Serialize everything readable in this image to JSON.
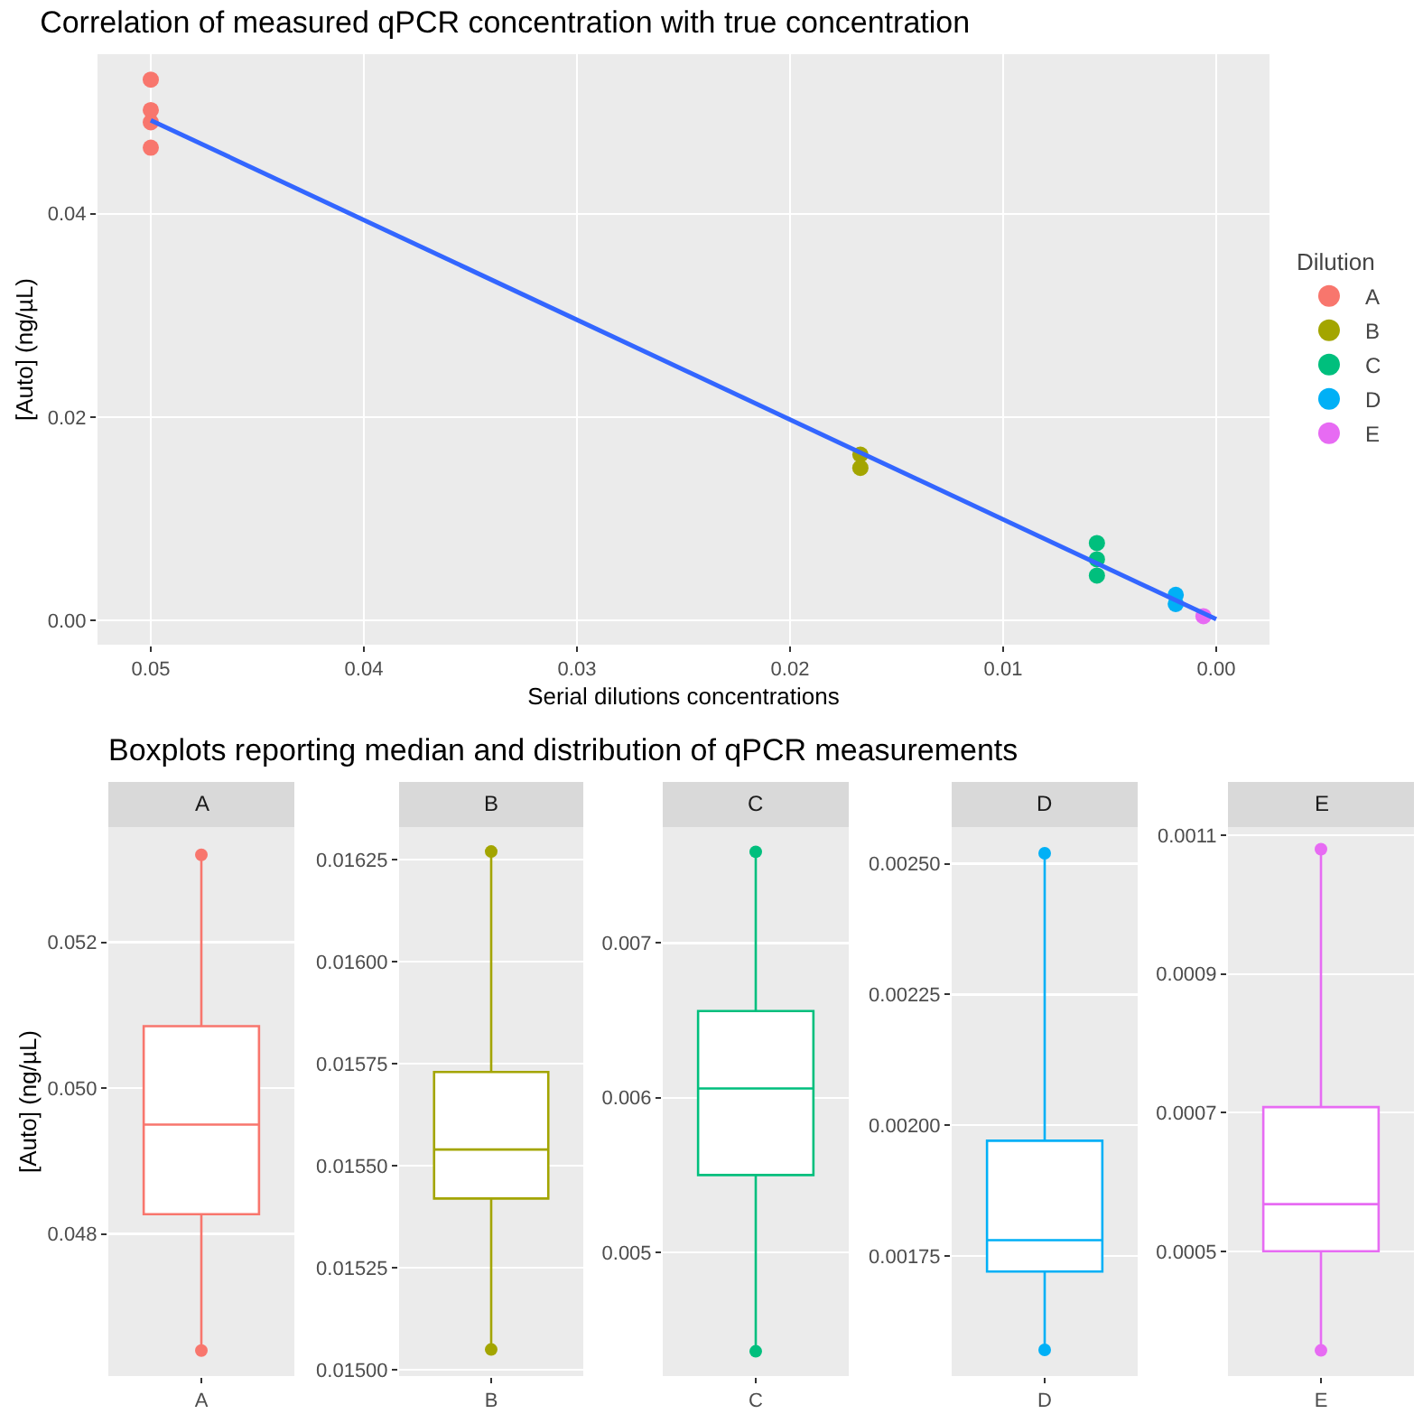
{
  "chart_data": [
    {
      "type": "scatter",
      "title": "Correlation of measured qPCR concentration with true concentration",
      "xlabel": "Serial dilutions concentrations",
      "ylabel": "[Auto] (ng/µL)",
      "legend_title": "Dilution",
      "legend": "right",
      "grid": true,
      "marker": "circle",
      "xlim": [
        0.0525,
        -0.0025
      ],
      "xticks": [
        0.05,
        0.04,
        0.03,
        0.02,
        0.01,
        {
          "value": 0,
          "label": "0.00"
        }
      ],
      "ylim": [
        -0.0024,
        0.0557
      ],
      "yticks": [
        {
          "value": 0,
          "label": "0.00"
        },
        0.02,
        0.04
      ],
      "series": [
        {
          "name": "A",
          "color": "#f8766d",
          "x": [
            0.05,
            0.05,
            0.05,
            0.05
          ],
          "values": [
            0.0532,
            0.0502,
            0.049,
            0.0465
          ]
        },
        {
          "name": "B",
          "color": "#a3a500",
          "x": [
            0.0167,
            0.0167
          ],
          "values": [
            0.0163,
            0.015
          ]
        },
        {
          "name": "C",
          "color": "#00bf7d",
          "x": [
            0.0056,
            0.0056,
            0.0056
          ],
          "values": [
            0.0076,
            0.006,
            0.0044
          ]
        },
        {
          "name": "D",
          "color": "#00b0f6",
          "x": [
            0.0019,
            0.0019
          ],
          "values": [
            0.0025,
            0.0016
          ]
        },
        {
          "name": "E",
          "color": "#e76bf3",
          "x": [
            0.0006
          ],
          "values": [
            0.0004
          ]
        },
        {
          "type": "line",
          "marker": "none",
          "color": "#3366ff",
          "x": [
            0.05,
            0
          ],
          "values": [
            0.0492,
            0.0001
          ]
        }
      ]
    },
    {
      "type": "box",
      "title": "A",
      "annotations": [
        "Boxplots reporting median and distribution of qPCR measurements"
      ],
      "ylabel": "[Auto] (ng/µL)",
      "grid": "y",
      "categories": [
        "A"
      ],
      "color": "#f8766d",
      "ylim": [
        0.04605,
        0.05358
      ],
      "yticks": [
        0.048,
        {
          "value": 0.05,
          "label": "0.050"
        },
        0.052
      ],
      "boxes": [
        {
          "low": 0.0464,
          "q1": 0.04827,
          "median": 0.0495,
          "q3": 0.05085,
          "high": 0.0532
        }
      ],
      "series": [
        {
          "type": "scatter",
          "color": "#f8766d",
          "x": [
            "A",
            "A"
          ],
          "values": [
            0.0532,
            0.0464
          ]
        }
      ]
    },
    {
      "type": "box",
      "title": "B",
      "grid": "y",
      "categories": [
        "B"
      ],
      "color": "#a3a500",
      "ylim": [
        0.014985,
        0.01633
      ],
      "yticks": [
        {
          "value": 0.015,
          "label": "0.01500"
        },
        {
          "value": 0.01525,
          "label": "0.01525"
        },
        {
          "value": 0.0155,
          "label": "0.01550"
        },
        {
          "value": 0.01575,
          "label": "0.01575"
        },
        {
          "value": 0.016,
          "label": "0.01600"
        },
        {
          "value": 0.01625,
          "label": "0.01625"
        }
      ],
      "boxes": [
        {
          "low": 0.01505,
          "q1": 0.01542,
          "median": 0.01554,
          "q3": 0.01573,
          "high": 0.01627
        }
      ],
      "series": [
        {
          "type": "scatter",
          "color": "#a3a500",
          "x": [
            "B",
            "B"
          ],
          "values": [
            0.01627,
            0.01505
          ]
        }
      ]
    },
    {
      "type": "box",
      "title": "C",
      "grid": "y",
      "categories": [
        "C"
      ],
      "color": "#00bf7d",
      "ylim": [
        0.0042,
        0.00775
      ],
      "yticks": [
        0.005,
        0.006,
        0.007
      ],
      "boxes": [
        {
          "low": 0.00436,
          "q1": 0.0055,
          "median": 0.00606,
          "q3": 0.00656,
          "high": 0.00759
        }
      ],
      "series": [
        {
          "type": "scatter",
          "color": "#00bf7d",
          "x": [
            "C",
            "C"
          ],
          "values": [
            0.00759,
            0.00436
          ]
        }
      ]
    },
    {
      "type": "box",
      "title": "D",
      "grid": "y",
      "categories": [
        "D"
      ],
      "color": "#00b0f6",
      "ylim": [
        0.00152,
        0.00257
      ],
      "yticks": [
        {
          "value": 0.00175,
          "label": "0.00175"
        },
        {
          "value": 0.002,
          "label": "0.00200"
        },
        {
          "value": 0.00225,
          "label": "0.00225"
        },
        {
          "value": 0.0025,
          "label": "0.00250"
        }
      ],
      "boxes": [
        {
          "low": 0.00157,
          "q1": 0.00172,
          "median": 0.00178,
          "q3": 0.00197,
          "high": 0.00252
        }
      ],
      "series": [
        {
          "type": "scatter",
          "color": "#00b0f6",
          "x": [
            "D",
            "D"
          ],
          "values": [
            0.00252,
            0.00157
          ]
        }
      ]
    },
    {
      "type": "box",
      "title": "E",
      "grid": "y",
      "categories": [
        "E"
      ],
      "color": "#e76bf3",
      "ylim": [
        0.00032,
        0.001112
      ],
      "yticks": [
        0.0005,
        0.0007,
        0.0009,
        0.0011
      ],
      "boxes": [
        {
          "low": 0.000357,
          "q1": 0.0005,
          "median": 0.000568,
          "q3": 0.000708,
          "high": 0.00108
        }
      ],
      "series": [
        {
          "type": "scatter",
          "color": "#e76bf3",
          "x": [
            "E",
            "E"
          ],
          "values": [
            0.00108,
            0.000357
          ]
        }
      ]
    }
  ]
}
